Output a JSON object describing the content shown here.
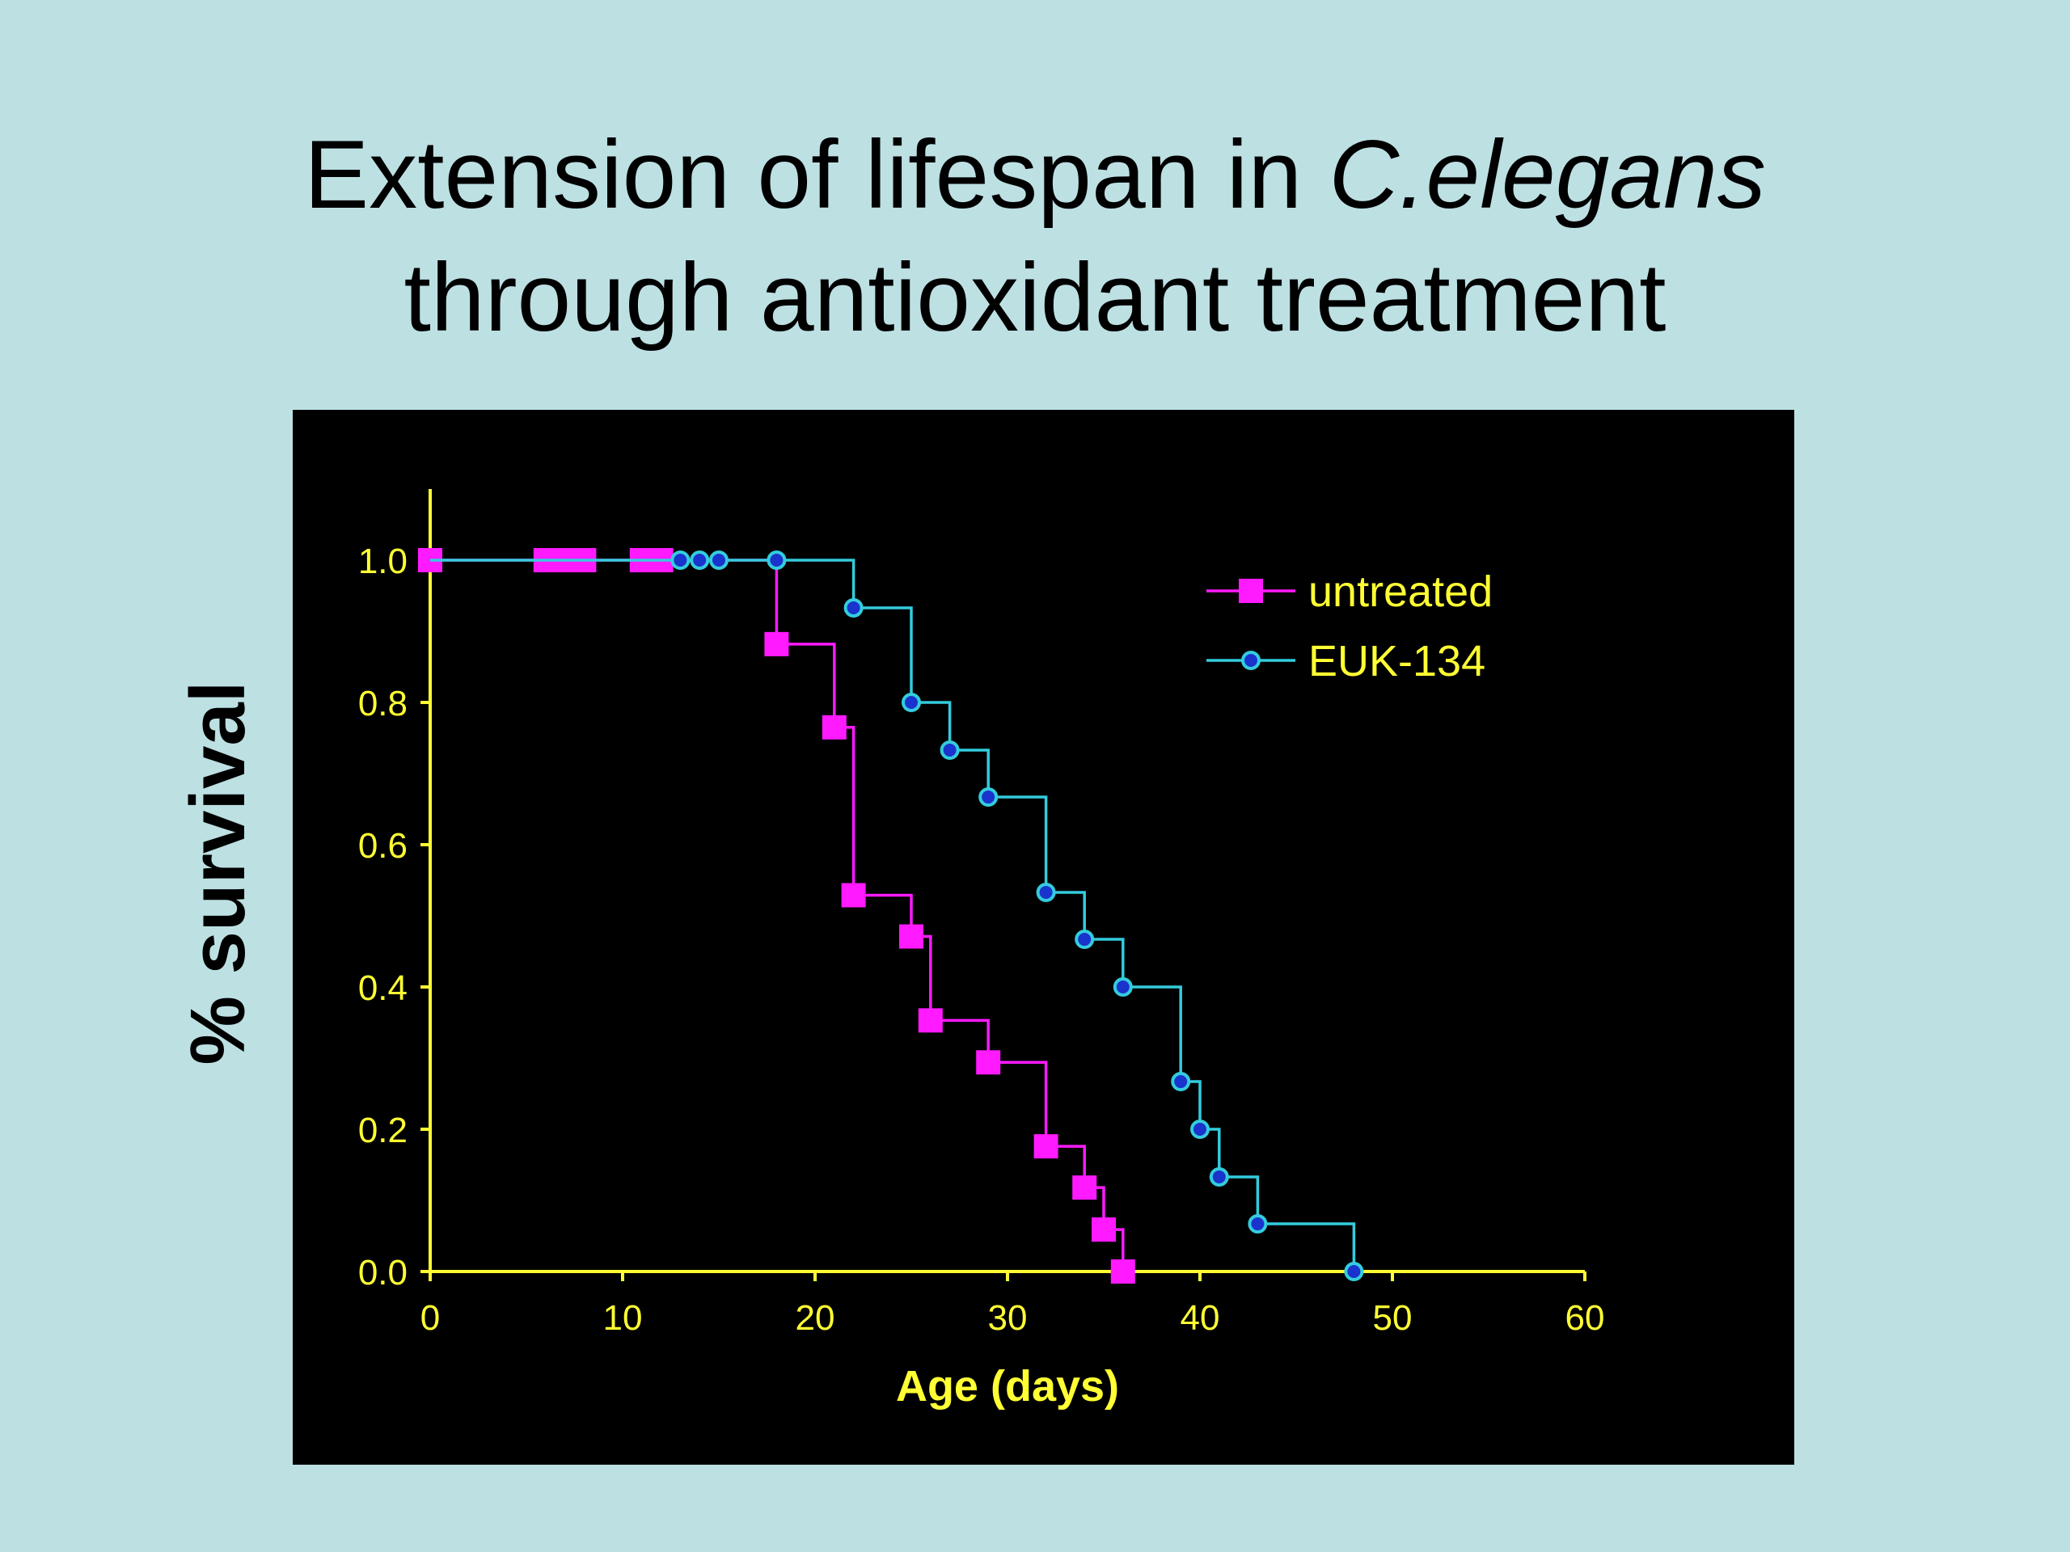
{
  "slide": {
    "title_line1_plain": "Extension of lifespan in ",
    "title_line1_italic": "C.elegans",
    "title_line2": "through antioxidant treatment"
  },
  "colors": {
    "background": "#bde0e3",
    "panel": "#000000",
    "axis": "#ffff33",
    "untreated": "#ff1aff",
    "euk134": "#33ccdd",
    "euk134_marker_fill": "#1a33cc"
  },
  "chart_data": {
    "type": "line",
    "step": true,
    "xlabel": "Age (days)",
    "ylabel": "% survival",
    "xlim": [
      0,
      60
    ],
    "ylim": [
      0,
      1.1
    ],
    "xticks": [
      0,
      10,
      20,
      30,
      40,
      50,
      60
    ],
    "xtick_labels": [
      "0",
      "10",
      "20",
      "30",
      "40",
      "50",
      "60"
    ],
    "yticks": [
      0,
      0.2,
      0.4,
      0.6,
      0.8,
      1.0
    ],
    "ytick_labels": [
      "0.0",
      "0.2",
      "0.4",
      "0.6",
      "0.8",
      "1.0"
    ],
    "grid": false,
    "legend_position": "top-right",
    "series": [
      {
        "name": "untreated",
        "marker": "square",
        "x": [
          0,
          18,
          21,
          22,
          25,
          26,
          29,
          32,
          34,
          35,
          36
        ],
        "y": [
          1.0,
          0.882,
          0.765,
          0.529,
          0.471,
          0.353,
          0.294,
          0.176,
          0.118,
          0.059,
          0.0
        ],
        "censored": [
          0,
          6,
          6.5,
          7,
          7.5,
          8,
          11,
          11.5,
          12
        ]
      },
      {
        "name": "EUK-134",
        "marker": "circle",
        "x": [
          0,
          22,
          25,
          27,
          29,
          32,
          34,
          36,
          39,
          40,
          41,
          43,
          48
        ],
        "y": [
          1.0,
          0.933,
          0.8,
          0.733,
          0.667,
          0.533,
          0.467,
          0.4,
          0.267,
          0.2,
          0.133,
          0.067,
          0.0
        ],
        "censored": [
          13,
          14,
          15,
          18
        ]
      }
    ]
  }
}
